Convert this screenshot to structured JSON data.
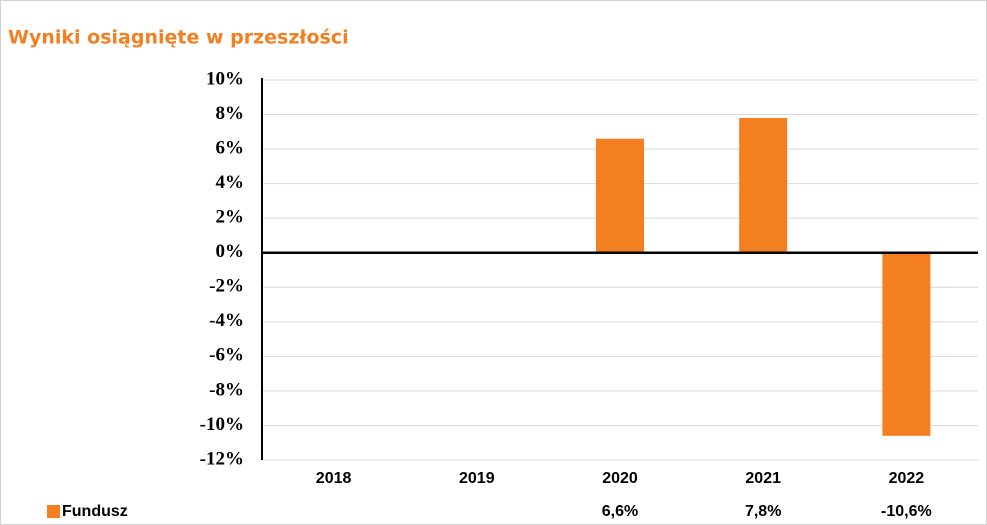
{
  "chart_data": {
    "type": "bar",
    "title": "Wyniki osiągnięte w przeszłości",
    "categories": [
      "2018",
      "2019",
      "2020",
      "2021",
      "2022"
    ],
    "series": [
      {
        "name": "Fundusz",
        "color": "#f47f20",
        "values": [
          null,
          null,
          6.6,
          7.8,
          -10.6
        ],
        "value_labels": [
          null,
          null,
          "6,6%",
          "7,8%",
          "-10,6%"
        ]
      }
    ],
    "ylim": [
      -12,
      10
    ],
    "yticks": [
      {
        "value": -12,
        "label": "-12%"
      },
      {
        "value": -10,
        "label": "-10%"
      },
      {
        "value": -8,
        "label": "-8%"
      },
      {
        "value": -6,
        "label": "-6%"
      },
      {
        "value": -4,
        "label": "-4%"
      },
      {
        "value": -2,
        "label": "-2%"
      },
      {
        "value": 0,
        "label": "0%"
      },
      {
        "value": 2,
        "label": "2%"
      },
      {
        "value": 4,
        "label": "4%"
      },
      {
        "value": 6,
        "label": "6%"
      },
      {
        "value": 8,
        "label": "8%"
      },
      {
        "value": 10,
        "label": "10%"
      }
    ],
    "grid": true
  }
}
